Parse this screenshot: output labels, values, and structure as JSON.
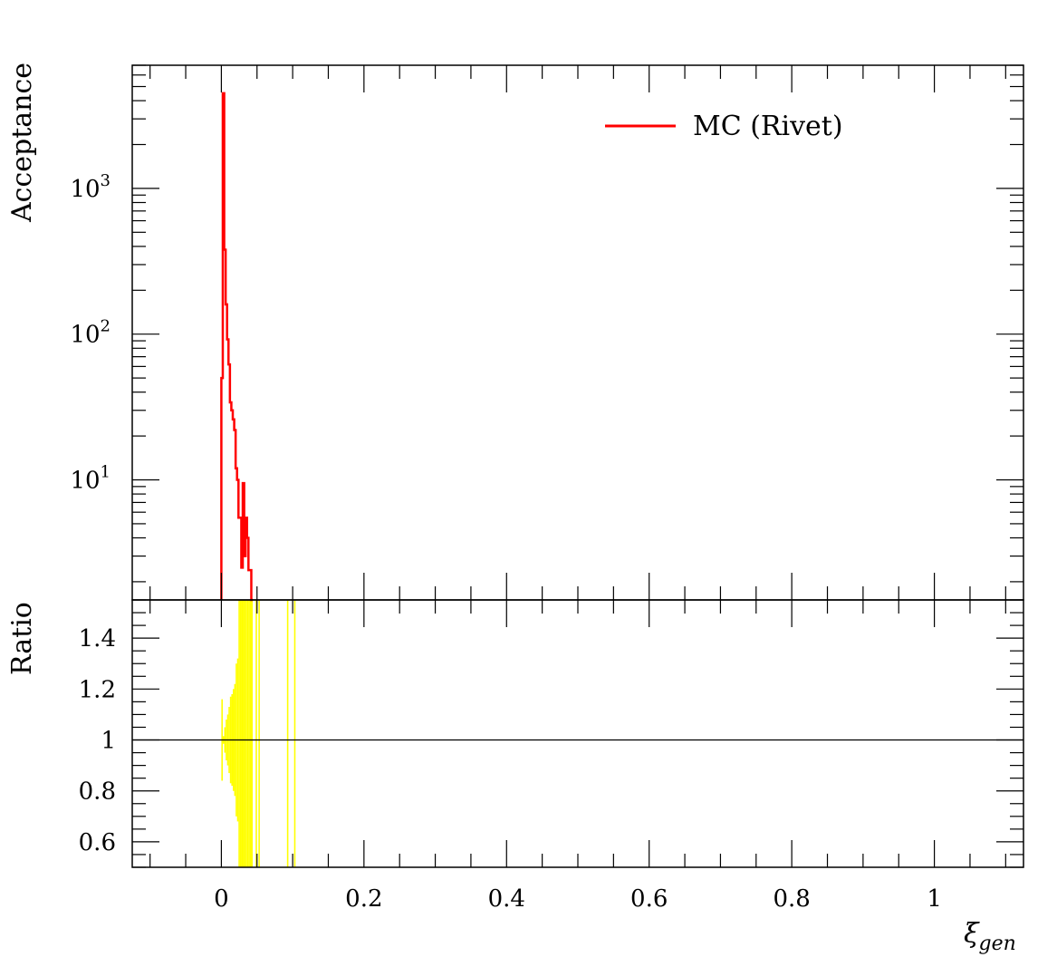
{
  "chart_data": {
    "type": "line",
    "main": {
      "ylabel": "Acceptance",
      "yscale": "log",
      "ylim": [
        1.5,
        7000
      ],
      "yticks": [
        {
          "value": 10,
          "base": "10",
          "exp": "1"
        },
        {
          "value": 100,
          "base": "10",
          "exp": "2"
        },
        {
          "value": 1000,
          "base": "10",
          "exp": "3"
        }
      ],
      "legend": {
        "label": "MC (Rivet)",
        "placement": "top-right",
        "color": "#ff0000"
      },
      "series": [
        {
          "name": "MC (Rivet)",
          "color": "#ff0000",
          "style": "histogram-step",
          "bins": [
            [
              0.0,
              0.002,
              50
            ],
            [
              0.002,
              0.004,
              4500
            ],
            [
              0.004,
              0.006,
              380
            ],
            [
              0.006,
              0.008,
              160
            ],
            [
              0.008,
              0.01,
              92
            ],
            [
              0.01,
              0.012,
              62
            ],
            [
              0.012,
              0.014,
              34
            ],
            [
              0.014,
              0.016,
              30
            ],
            [
              0.016,
              0.018,
              26
            ],
            [
              0.018,
              0.02,
              22
            ],
            [
              0.02,
              0.022,
              12
            ],
            [
              0.022,
              0.024,
              10
            ],
            [
              0.024,
              0.026,
              5.5
            ],
            [
              0.026,
              0.028,
              5.5
            ],
            [
              0.028,
              0.03,
              2.5
            ],
            [
              0.03,
              0.032,
              9.5
            ],
            [
              0.032,
              0.034,
              3.0
            ],
            [
              0.034,
              0.036,
              5.5
            ],
            [
              0.036,
              0.038,
              4.0
            ],
            [
              0.038,
              0.04,
              2.4
            ],
            [
              0.04,
              0.042,
              2.4
            ],
            [
              0.042,
              0.044,
              1.2
            ]
          ]
        }
      ]
    },
    "ratio": {
      "ylabel": "Ratio",
      "ylim": [
        0.5,
        1.55
      ],
      "yticks": [
        {
          "value": 0.6,
          "label": "0.6"
        },
        {
          "value": 0.8,
          "label": "0.8"
        },
        {
          "value": 1.0,
          "label": "1"
        },
        {
          "value": 1.2,
          "label": "1.2"
        },
        {
          "value": 1.4,
          "label": "1.4"
        }
      ],
      "reference_line": 1.0,
      "band_color": "#ffff00",
      "bands": [
        [
          0.0,
          0.002,
          0.84,
          1.16
        ],
        [
          0.002,
          0.004,
          0.985,
          1.015
        ],
        [
          0.004,
          0.006,
          0.95,
          1.05
        ],
        [
          0.006,
          0.008,
          0.92,
          1.08
        ],
        [
          0.008,
          0.01,
          0.9,
          1.1
        ],
        [
          0.01,
          0.012,
          0.87,
          1.13
        ],
        [
          0.012,
          0.014,
          0.83,
          1.17
        ],
        [
          0.014,
          0.016,
          0.82,
          1.18
        ],
        [
          0.016,
          0.018,
          0.8,
          1.2
        ],
        [
          0.018,
          0.02,
          0.78,
          1.22
        ],
        [
          0.02,
          0.022,
          0.7,
          1.3
        ],
        [
          0.022,
          0.024,
          0.68,
          1.32
        ],
        [
          0.024,
          0.026,
          0.45,
          1.6
        ],
        [
          0.026,
          0.028,
          0.45,
          1.6
        ],
        [
          0.028,
          0.03,
          0.45,
          1.6
        ],
        [
          0.03,
          0.032,
          0.45,
          1.6
        ],
        [
          0.032,
          0.034,
          0.45,
          1.6
        ],
        [
          0.034,
          0.036,
          0.45,
          1.6
        ],
        [
          0.036,
          0.038,
          0.45,
          1.6
        ],
        [
          0.038,
          0.04,
          0.45,
          1.6
        ],
        [
          0.04,
          0.042,
          0.45,
          1.6
        ],
        [
          0.042,
          0.044,
          0.45,
          1.6
        ],
        [
          0.048,
          0.05,
          0.45,
          1.6
        ],
        [
          0.052,
          0.054,
          0.45,
          1.6
        ],
        [
          0.092,
          0.094,
          0.45,
          1.6
        ],
        [
          0.102,
          0.104,
          0.45,
          1.6
        ]
      ]
    },
    "x": {
      "label_main": "ξ",
      "label_sub": "gen",
      "xlim": [
        -0.125,
        1.125
      ],
      "ticks": [
        {
          "value": 0,
          "label": "0"
        },
        {
          "value": 0.2,
          "label": "0.2"
        },
        {
          "value": 0.4,
          "label": "0.4"
        },
        {
          "value": 0.6,
          "label": "0.6"
        },
        {
          "value": 0.8,
          "label": "0.8"
        },
        {
          "value": 1.0,
          "label": "1"
        }
      ]
    }
  }
}
